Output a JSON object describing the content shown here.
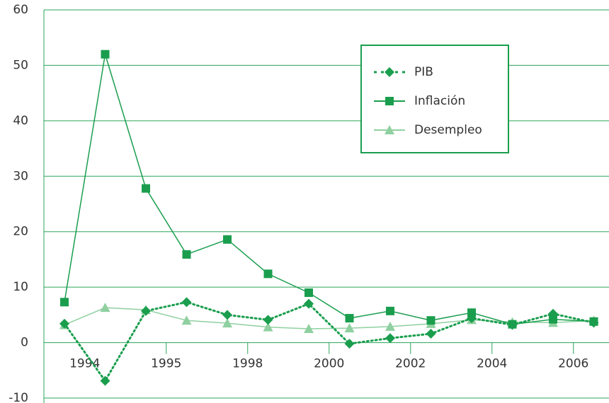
{
  "chart_data": {
    "type": "line",
    "categories": [
      "1994",
      null,
      "1995",
      null,
      "1998",
      null,
      "2000",
      null,
      "2002",
      null,
      "2004",
      null,
      "2006",
      null
    ],
    "series": [
      {
        "name": "PIB",
        "color": "#1a9e4e",
        "line_style": "dotted",
        "marker": "diamond",
        "values": [
          3.4,
          -6.9,
          5.7,
          7.3,
          5.0,
          4.1,
          7.0,
          -0.2,
          0.8,
          1.6,
          4.4,
          3.2,
          5.2,
          3.6
        ]
      },
      {
        "name": "Inflación",
        "color": "#1a9e4e",
        "line_style": "solid",
        "marker": "square",
        "values": [
          7.3,
          52.0,
          27.8,
          15.9,
          18.6,
          12.4,
          9.0,
          4.4,
          5.7,
          4.0,
          5.4,
          3.3,
          4.2,
          3.8
        ]
      },
      {
        "name": "Desempleo",
        "color": "#8fd0a0",
        "line_style": "solid",
        "marker": "triangle",
        "values": [
          3.2,
          6.3,
          5.9,
          4.0,
          3.5,
          2.8,
          2.5,
          2.6,
          2.9,
          3.4,
          4.1,
          3.7,
          3.6,
          4.0
        ]
      }
    ],
    "ylim": [
      -10,
      60
    ],
    "yticks": [
      -10,
      0,
      10,
      20,
      30,
      40,
      50,
      60
    ],
    "grid": true,
    "legend": "upper right"
  }
}
